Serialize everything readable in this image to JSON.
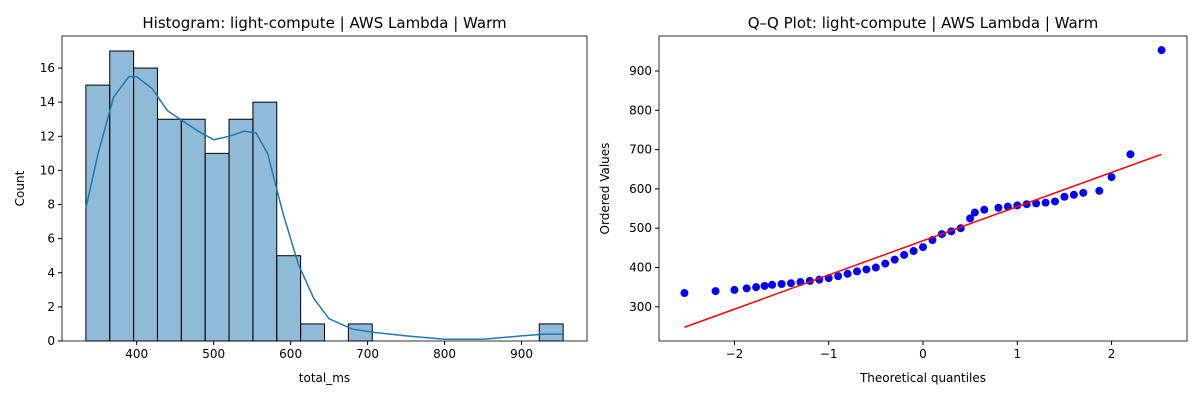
{
  "chart_data": [
    {
      "type": "histogram",
      "title": "Histogram: light-compute | AWS Lambda | Warm",
      "x_label": "total_ms",
      "y_label": "Count",
      "bins": [
        334,
        365,
        396,
        427,
        458,
        489,
        520,
        551,
        582,
        613,
        644,
        675,
        706,
        737,
        768,
        799,
        830,
        861,
        892,
        923,
        954
      ],
      "values": [
        15,
        17,
        16,
        13,
        13,
        11,
        13,
        14,
        5,
        1,
        0,
        1,
        0,
        0,
        0,
        0,
        0,
        0,
        0,
        1
      ],
      "color": "#1f77b4",
      "kde": {
        "x": [
          334,
          350,
          370,
          390,
          400,
          420,
          440,
          460,
          480,
          500,
          520,
          540,
          555,
          570,
          590,
          610,
          630,
          650,
          680,
          710,
          750,
          800,
          850,
          900,
          930,
          954
        ],
        "values": [
          7.8,
          11,
          14.3,
          15.5,
          15.5,
          14.8,
          13.5,
          12.9,
          12.3,
          11.8,
          12.0,
          12.3,
          12.2,
          11,
          7.5,
          4.5,
          2.5,
          1.3,
          0.7,
          0.5,
          0.3,
          0.1,
          0.1,
          0.3,
          0.4,
          0.4
        ]
      },
      "xlim": [
        303,
        985
      ],
      "ylim": [
        0,
        17.88
      ],
      "xticks": [
        400,
        500,
        600,
        700,
        800,
        900
      ],
      "yticks": [
        0,
        2,
        4,
        6,
        8,
        10,
        12,
        14,
        16
      ]
    },
    {
      "type": "scatter",
      "title": "Q–Q Plot: light-compute | AWS Lambda | Warm",
      "x_label": "Theoretical quantiles",
      "y_label": "Ordered Values",
      "color": "#0000ff",
      "x": [
        -2.53,
        -2.2,
        -2.0,
        -1.87,
        -1.77,
        -1.68,
        -1.6,
        -1.5,
        -1.4,
        -1.3,
        -1.2,
        -1.1,
        -1.0,
        -0.9,
        -0.8,
        -0.7,
        -0.6,
        -0.5,
        -0.4,
        -0.3,
        -0.2,
        -0.1,
        0.0,
        0.1,
        0.2,
        0.3,
        0.4,
        0.5,
        0.55,
        0.65,
        0.8,
        0.9,
        1.0,
        1.1,
        1.2,
        1.3,
        1.4,
        1.5,
        1.6,
        1.7,
        1.87,
        2.0,
        2.2,
        2.53
      ],
      "values": [
        335,
        340,
        343,
        347,
        350,
        353,
        356,
        358,
        360,
        363,
        366,
        369,
        373,
        378,
        384,
        390,
        395,
        400,
        410,
        420,
        432,
        442,
        452,
        470,
        485,
        492,
        500,
        525,
        540,
        547,
        552,
        555,
        558,
        561,
        563,
        565,
        568,
        580,
        585,
        590,
        595,
        630,
        688,
        953
      ],
      "fit_line": {
        "x": [
          -2.53,
          2.53
        ],
        "values": [
          248,
          688
        ],
        "color": "#ff0000"
      },
      "xlim": [
        -2.8,
        2.8
      ],
      "ylim": [
        213,
        989
      ],
      "xticks": [
        {
          "value": -2,
          "label": "−2"
        },
        {
          "value": -1,
          "label": "−1"
        },
        0,
        1,
        2
      ],
      "yticks": [
        300,
        400,
        500,
        600,
        700,
        800,
        900
      ]
    }
  ]
}
